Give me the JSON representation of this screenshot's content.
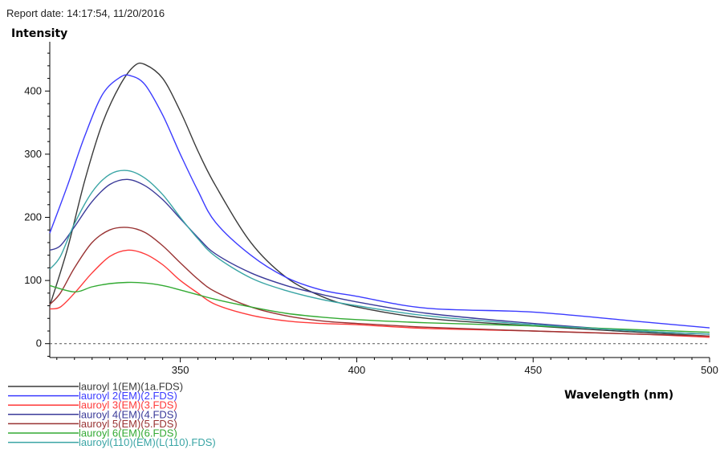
{
  "report_date": "Report date: 14:17:54, 11/20/2016",
  "chart_data": {
    "type": "line",
    "title": "",
    "ylabel": "Intensity",
    "xlabel": "Wavelength (nm)",
    "xlim": [
      313,
      500
    ],
    "ylim": [
      -22,
      478
    ],
    "x_ticks": [
      350,
      400,
      450,
      500
    ],
    "y_ticks": [
      0,
      100,
      200,
      300,
      400
    ],
    "baseline": 0,
    "series": [
      {
        "name": "lauroyl 1(EM)(1a.FDS)",
        "color": "#3a3a3a",
        "x": [
          313,
          318,
          323,
          328,
          333,
          337,
          340,
          345,
          350,
          355,
          360,
          370,
          380,
          390,
          400,
          420,
          450,
          480,
          500
        ],
        "y": [
          60,
          150,
          260,
          350,
          410,
          440,
          442,
          420,
          368,
          305,
          250,
          160,
          105,
          75,
          58,
          40,
          28,
          18,
          12
        ]
      },
      {
        "name": "lauroyl 2(EM)(2.FDS)",
        "color": "#3b3bff",
        "x": [
          313,
          318,
          323,
          328,
          333,
          336,
          340,
          345,
          350,
          355,
          360,
          370,
          380,
          390,
          400,
          420,
          450,
          480,
          500
        ],
        "y": [
          175,
          250,
          330,
          395,
          422,
          424,
          410,
          362,
          300,
          242,
          192,
          140,
          105,
          85,
          75,
          56,
          50,
          35,
          25
        ]
      },
      {
        "name": "lauroyl 3(EM)(3.FDS)",
        "color": "#ff3a3a",
        "x": [
          313,
          316,
          320,
          325,
          330,
          335,
          340,
          345,
          350,
          355,
          360,
          370,
          380,
          390,
          400,
          420,
          450,
          480,
          500
        ],
        "y": [
          55,
          58,
          80,
          112,
          138,
          148,
          142,
          125,
          100,
          80,
          62,
          45,
          36,
          32,
          30,
          24,
          20,
          15,
          10
        ]
      },
      {
        "name": "lauroyl 4(EM)(4.FDS)",
        "color": "#3a3a99",
        "x": [
          313,
          316,
          320,
          325,
          330,
          335,
          340,
          345,
          350,
          355,
          360,
          370,
          380,
          390,
          400,
          420,
          450,
          480,
          500
        ],
        "y": [
          148,
          155,
          185,
          225,
          252,
          260,
          250,
          228,
          198,
          168,
          142,
          112,
          92,
          78,
          66,
          48,
          32,
          20,
          15
        ]
      },
      {
        "name": "lauroyl 5(EM)(5.FDS)",
        "color": "#993333",
        "x": [
          313,
          316,
          320,
          325,
          330,
          335,
          340,
          345,
          350,
          355,
          360,
          370,
          380,
          390,
          400,
          420,
          450,
          480,
          500
        ],
        "y": [
          62,
          80,
          120,
          160,
          180,
          184,
          176,
          155,
          128,
          102,
          82,
          58,
          44,
          36,
          32,
          26,
          20,
          15,
          12
        ]
      },
      {
        "name": "lauroyl 6(EM)(6.FDS)",
        "color": "#33aa33",
        "x": [
          313,
          320,
          325,
          330,
          335,
          340,
          345,
          350,
          360,
          370,
          380,
          390,
          400,
          420,
          450,
          480,
          500
        ],
        "y": [
          92,
          82,
          90,
          95,
          97,
          96,
          92,
          85,
          70,
          58,
          48,
          42,
          38,
          33,
          28,
          22,
          18
        ]
      },
      {
        "name": "lauroyl(110)(EM)(L(110).FDS)",
        "color": "#3aa5a5",
        "x": [
          313,
          316,
          320,
          325,
          330,
          335,
          340,
          345,
          350,
          355,
          360,
          370,
          380,
          390,
          400,
          420,
          450,
          480,
          500
        ],
        "y": [
          118,
          138,
          190,
          240,
          268,
          274,
          262,
          236,
          200,
          166,
          138,
          104,
          84,
          70,
          60,
          44,
          30,
          20,
          15
        ]
      }
    ]
  }
}
